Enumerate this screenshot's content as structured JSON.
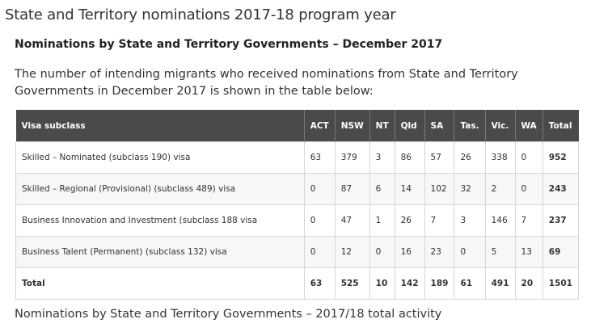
{
  "page": {
    "title": "State and Territory nominations 2017-18 program year",
    "section_title": "Nominations by State and Territory Governments – December 2017",
    "intro": "The number of intending migrants who received nominations from State and Territory Governments in December 2017 is shown in the table below:",
    "footer_heading": "Nominations by State and Territory Governments – 2017/18 total activity"
  },
  "table": {
    "headers": [
      "Visa subclass",
      "ACT",
      "NSW",
      "NT",
      "Qld",
      "SA",
      "Tas.",
      "Vic.",
      "WA",
      "Total"
    ],
    "rows": [
      {
        "visa": "Skilled – Nominated (subclass 190) visa",
        "values": [
          "63",
          "379",
          "3",
          "86",
          "57",
          "26",
          "338",
          "0",
          "952"
        ]
      },
      {
        "visa": "Skilled – Regional (Provisional) (subclass 489) visa",
        "values": [
          "0",
          "87",
          "6",
          "14",
          "102",
          "32",
          "2",
          "0",
          "243"
        ]
      },
      {
        "visa": "Business Innovation and Investment (subclass 188 visa",
        "values": [
          "0",
          "47",
          "1",
          "26",
          "7",
          "3",
          "146",
          "7",
          "237"
        ]
      },
      {
        "visa": "Business Talent (Permanent) (subclass 132) visa",
        "values": [
          "0",
          "12",
          "0",
          "16",
          "23",
          "0",
          "5",
          "13",
          "69"
        ]
      }
    ],
    "total_row": {
      "label": "Total",
      "values": [
        "63",
        "525",
        "10",
        "142",
        "189",
        "61",
        "491",
        "20",
        "1501"
      ]
    }
  }
}
